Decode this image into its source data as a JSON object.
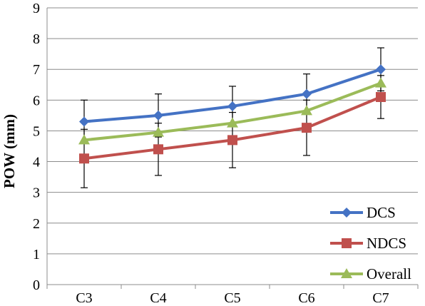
{
  "chart_data": {
    "type": "line",
    "categories": [
      "C3",
      "C4",
      "C5",
      "C6",
      "C7"
    ],
    "ylabel": "POW (mm)",
    "xlabel": "",
    "ylim": [
      0,
      9
    ],
    "yticks": [
      0,
      1,
      2,
      3,
      4,
      5,
      6,
      7,
      8,
      9
    ],
    "grid": true,
    "legend_position": "bottom-right",
    "series": [
      {
        "name": "DCS",
        "color": "#4472C4",
        "marker": "diamond",
        "values": [
          5.3,
          5.5,
          5.8,
          6.2,
          7.0
        ],
        "error": [
          0.7,
          0.7,
          0.65,
          0.65,
          0.7
        ]
      },
      {
        "name": "NDCS",
        "color": "#C0504D",
        "marker": "square",
        "values": [
          4.1,
          4.4,
          4.7,
          5.1,
          6.1
        ],
        "error": [
          0.95,
          0.85,
          0.9,
          0.9,
          0.7
        ]
      },
      {
        "name": "Overall",
        "color": "#9BBB59",
        "marker": "triangle",
        "values": [
          4.7,
          4.95,
          5.25,
          5.65,
          6.55
        ],
        "error": [
          0,
          0,
          0,
          0,
          0
        ]
      }
    ]
  }
}
